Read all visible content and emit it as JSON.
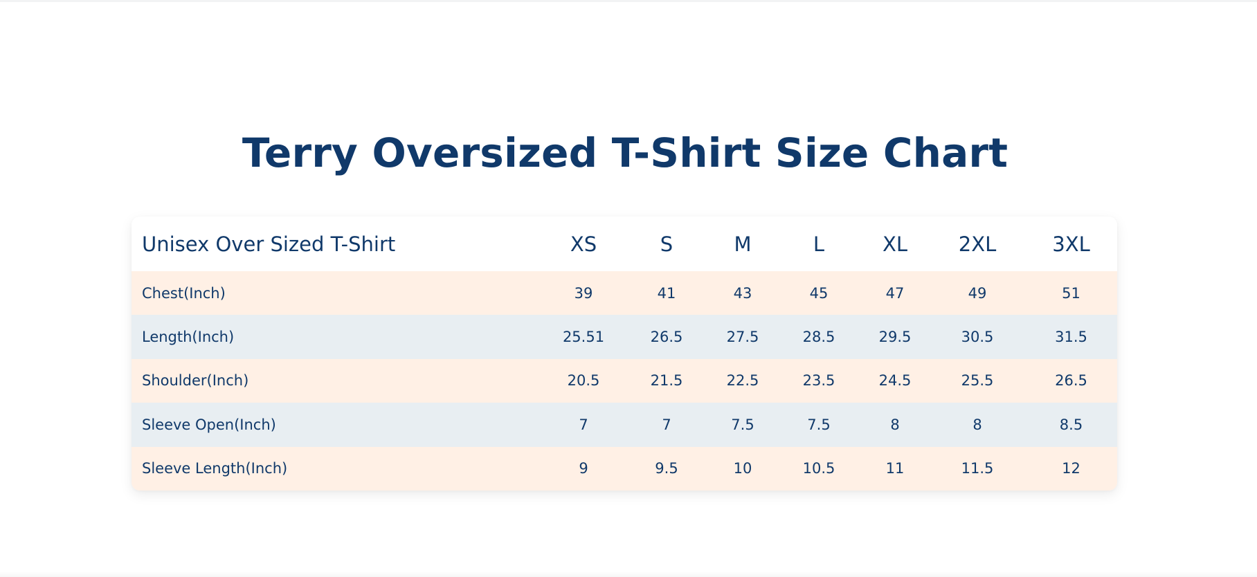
{
  "title": "Terry Oversized T-Shirt Size Chart",
  "table": {
    "corner_header": "Unisex Over Sized T-Shirt",
    "sizes": [
      "XS",
      "S",
      "M",
      "L",
      "XL",
      "2XL",
      "3XL"
    ],
    "rows": [
      {
        "label": "Chest(Inch)",
        "values": [
          "39",
          "41",
          "43",
          "45",
          "47",
          "49",
          "51"
        ]
      },
      {
        "label": "Length(Inch)",
        "values": [
          "25.51",
          "26.5",
          "27.5",
          "28.5",
          "29.5",
          "30.5",
          "31.5"
        ]
      },
      {
        "label": "Shoulder(Inch)",
        "values": [
          "20.5",
          "21.5",
          "22.5",
          "23.5",
          "24.5",
          "25.5",
          "26.5"
        ]
      },
      {
        "label": "Sleeve Open(Inch)",
        "values": [
          "7",
          "7",
          "7.5",
          "7.5",
          "8",
          "8",
          "8.5"
        ]
      },
      {
        "label": "Sleeve Length(Inch)",
        "values": [
          "9",
          "9.5",
          "10",
          "10.5",
          "11",
          "11.5",
          "12"
        ]
      }
    ]
  },
  "colors": {
    "text": "#10396a",
    "row_peach": "#fff0e5",
    "row_blue_gray": "#e8eef2"
  }
}
